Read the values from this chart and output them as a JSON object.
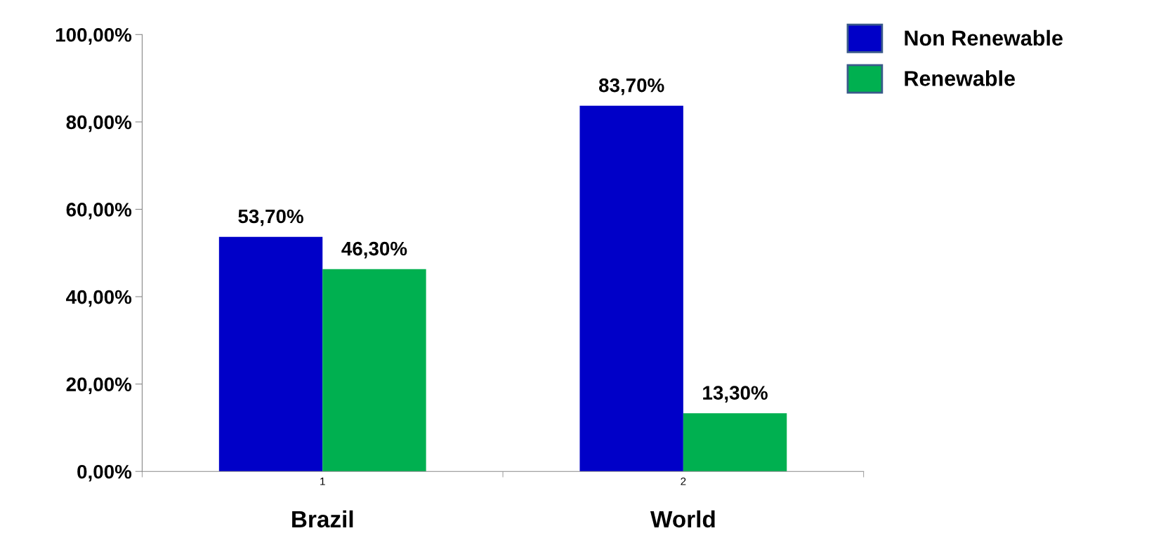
{
  "chart_data": {
    "type": "bar",
    "categories": [
      "1",
      "2"
    ],
    "series": [
      {
        "name": "Non Renewable",
        "color": "#0000c8",
        "values": [
          53.7,
          83.7
        ],
        "value_labels": [
          "53,70%",
          "83,70%"
        ]
      },
      {
        "name": "Renewable",
        "color": "#00b050",
        "values": [
          46.3,
          13.3
        ],
        "value_labels": [
          "46,30%",
          "13,30%"
        ]
      }
    ],
    "annotations": [
      "Brazil",
      "World"
    ],
    "ylim": [
      0,
      100
    ],
    "yticks": [
      {
        "value": 0,
        "label": "0,00%"
      },
      {
        "value": 20,
        "label": "20,00%"
      },
      {
        "value": 40,
        "label": "40,00%"
      },
      {
        "value": 60,
        "label": "60,00%"
      },
      {
        "value": 80,
        "label": "80,00%"
      },
      {
        "value": 100,
        "label": "100,00%"
      }
    ],
    "legend": "top right"
  }
}
